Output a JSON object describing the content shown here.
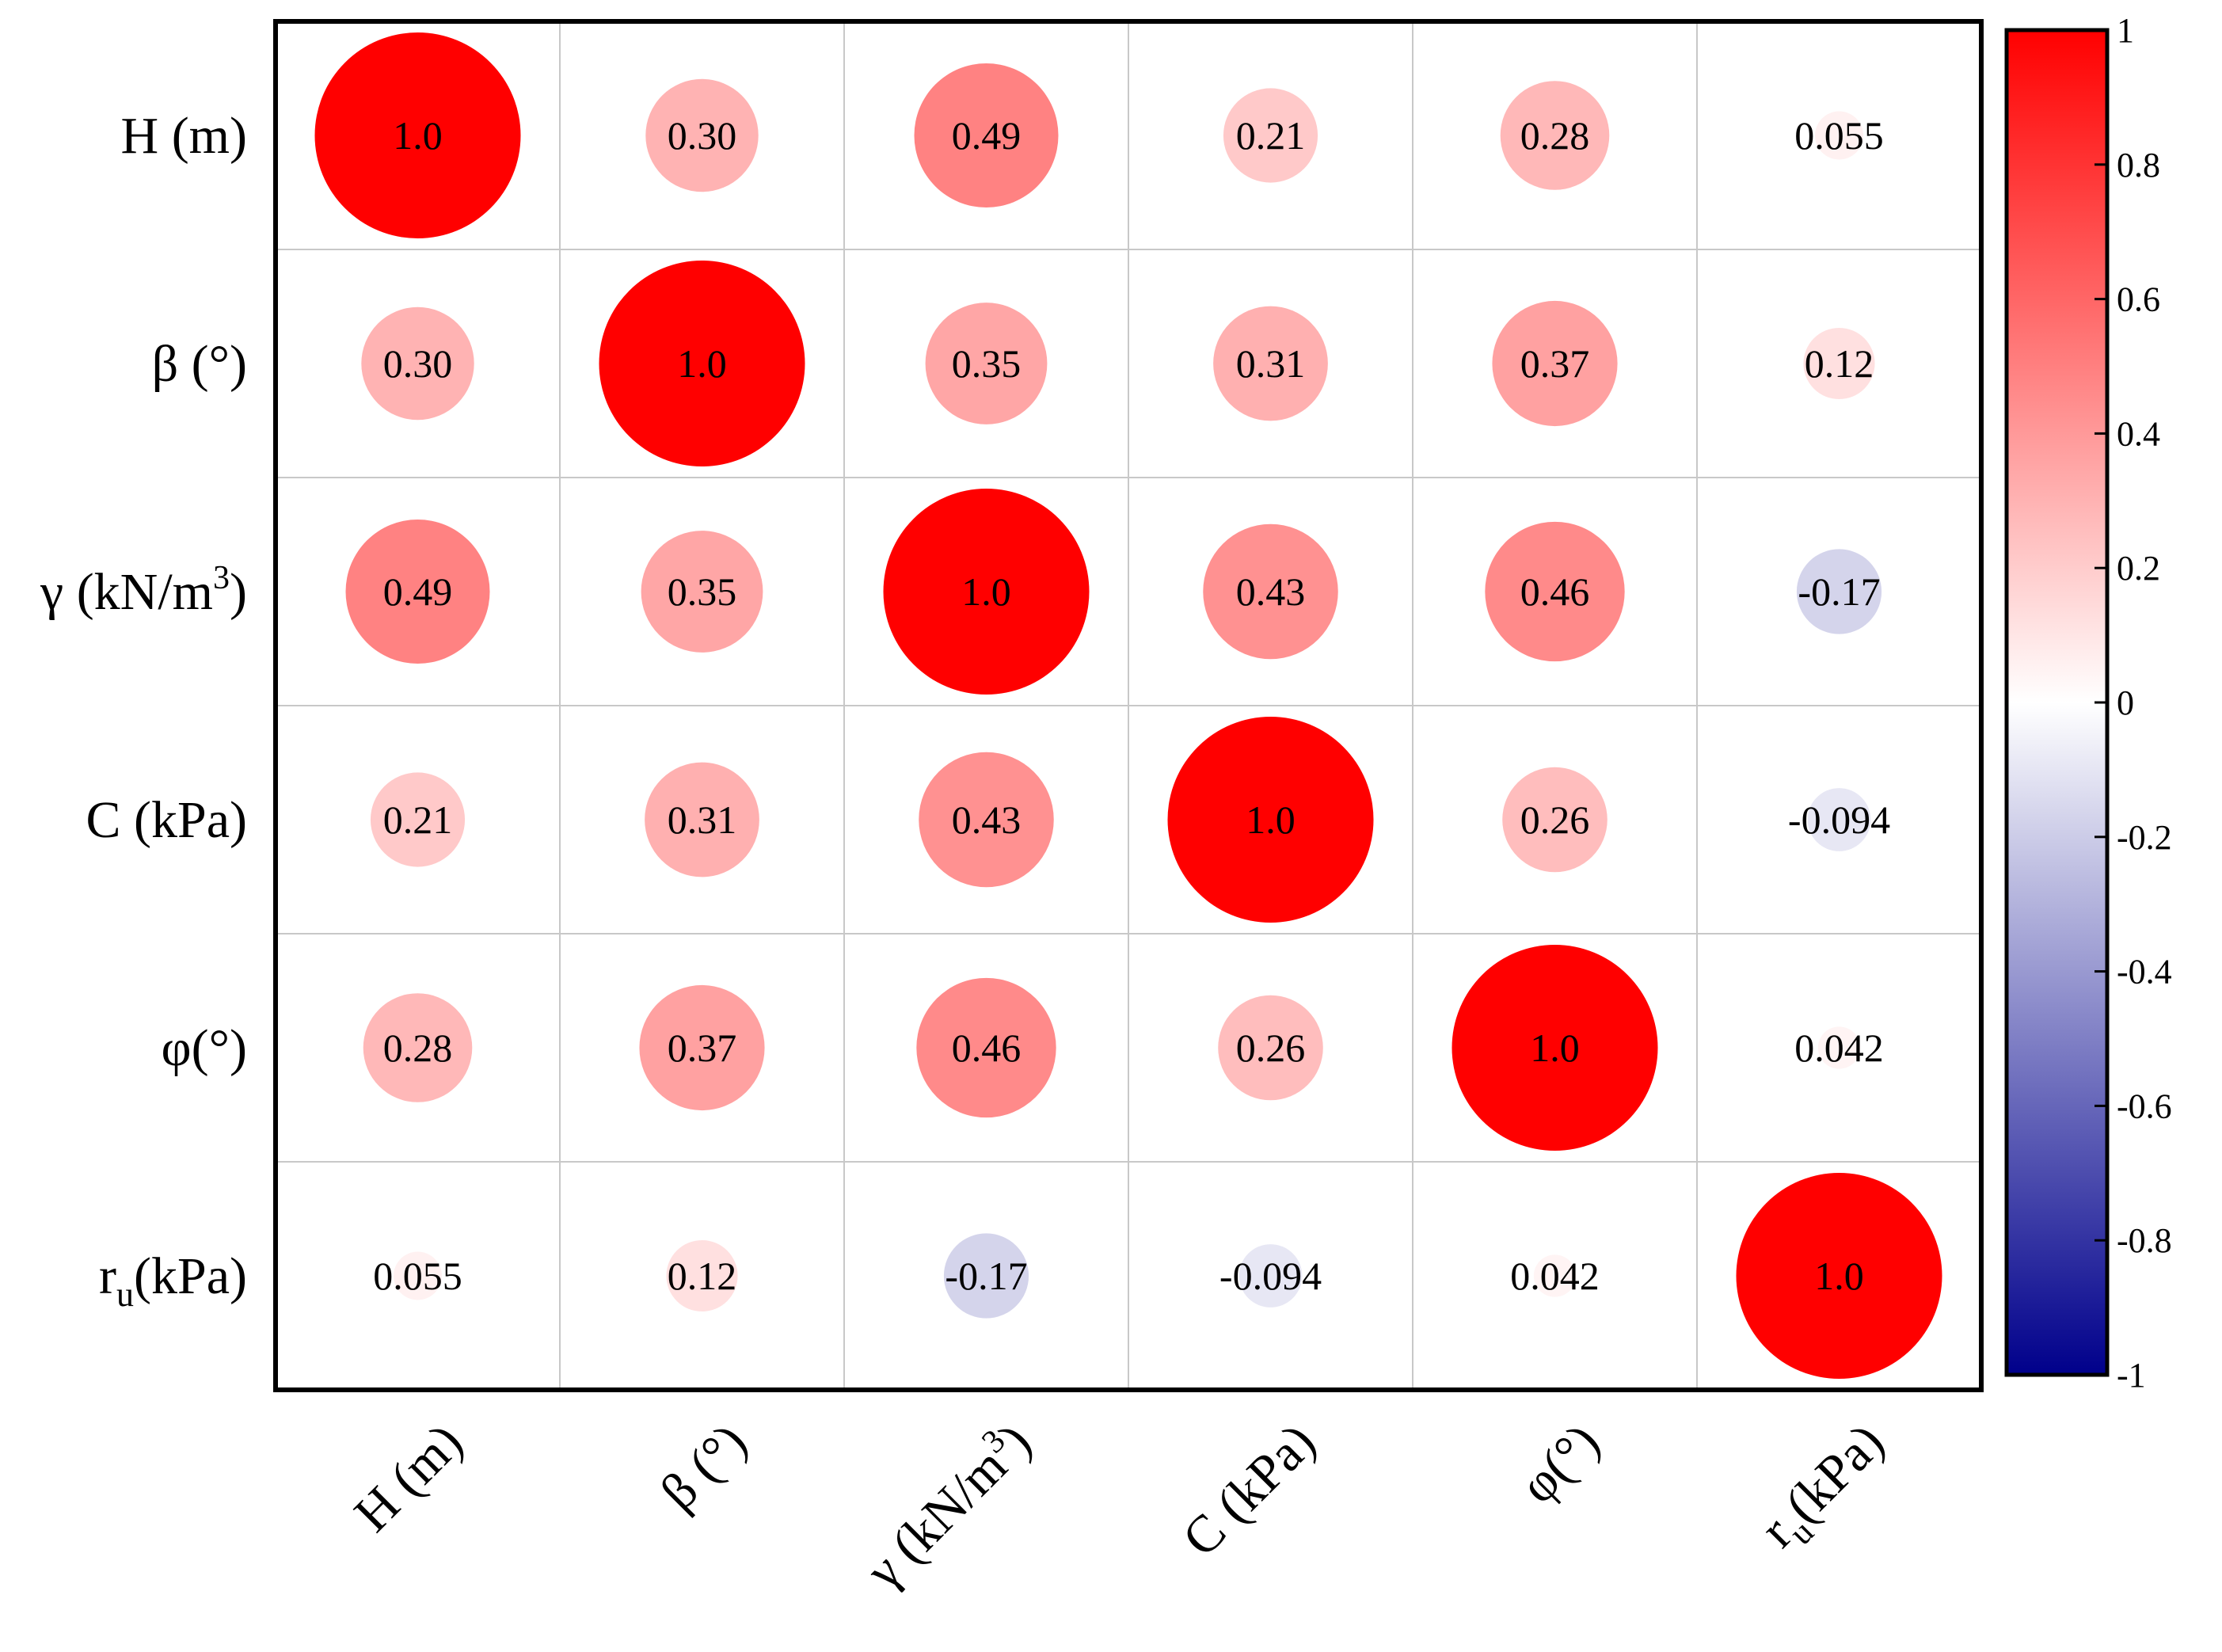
{
  "chart_data": {
    "type": "heatmap",
    "variables": [
      {
        "main": "H (m)",
        "sub": "",
        "sup": "",
        "tail": ""
      },
      {
        "main": "β (°)",
        "sub": "",
        "sup": "",
        "tail": ""
      },
      {
        "main": "γ (kN/m",
        "sub": "",
        "sup": "3",
        "tail": ")"
      },
      {
        "main": "C (kPa)",
        "sub": "",
        "sup": "",
        "tail": ""
      },
      {
        "main": "φ(°)",
        "sub": "",
        "sup": "",
        "tail": ""
      },
      {
        "main": "r",
        "sub": "u",
        "sup": "",
        "tail": "(kPa)"
      }
    ],
    "values": [
      [
        1.0,
        0.3,
        0.49,
        0.21,
        0.28,
        0.055
      ],
      [
        0.3,
        1.0,
        0.35,
        0.31,
        0.37,
        0.12
      ],
      [
        0.49,
        0.35,
        1.0,
        0.43,
        0.46,
        -0.17
      ],
      [
        0.21,
        0.31,
        0.43,
        1.0,
        0.26,
        -0.094
      ],
      [
        0.28,
        0.37,
        0.46,
        0.26,
        1.0,
        0.042
      ],
      [
        0.055,
        0.12,
        -0.17,
        -0.094,
        0.042,
        1.0
      ]
    ],
    "cell_labels": [
      [
        "1.0",
        "0.30",
        "0.49",
        "0.21",
        "0.28",
        "0.055"
      ],
      [
        "0.30",
        "1.0",
        "0.35",
        "0.31",
        "0.37",
        "0.12"
      ],
      [
        "0.49",
        "0.35",
        "1.0",
        "0.43",
        "0.46",
        "-0.17"
      ],
      [
        "0.21",
        "0.31",
        "0.43",
        "1.0",
        "0.26",
        "-0.094"
      ],
      [
        "0.28",
        "0.37",
        "0.46",
        "0.26",
        "1.0",
        "0.042"
      ],
      [
        "0.055",
        "0.12",
        "-0.17",
        "-0.094",
        "0.042",
        "1.0"
      ]
    ],
    "colorbar": {
      "range": [
        -1,
        1
      ],
      "ticks": [
        1,
        0.8,
        0.6,
        0.4,
        0.2,
        0,
        -0.2,
        -0.4,
        -0.6,
        -0.8,
        -1
      ],
      "tick_labels": [
        "1",
        "0.8",
        "0.6",
        "0.4",
        "0.2",
        "0",
        "-0.2",
        "-0.4",
        "-0.6",
        "-0.8",
        "-1"
      ],
      "colors": {
        "high": "#ff0000",
        "mid": "#ffffff",
        "low": "#00008b"
      }
    },
    "marker": "circle, area scaled by |r|",
    "grid": true,
    "legend_position": "right"
  }
}
